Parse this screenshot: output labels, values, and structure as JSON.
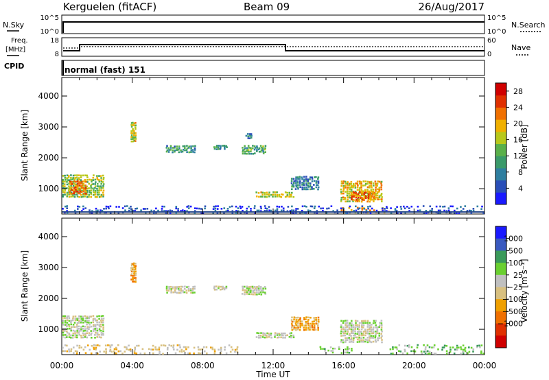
{
  "header": {
    "station": "Kerguelen (fitACF)",
    "beam": "Beam 09",
    "date": "26/Aug/2017"
  },
  "status_panels": {
    "sky_label": "N.Sky",
    "search_label": "N.Search",
    "sky_ticks": [
      "10^5",
      "10^0"
    ],
    "search_ticks": [
      "10^5",
      "10^0"
    ],
    "freq_label_1": "Freq.",
    "freq_label_2": "[MHz]",
    "freq_ticks": [
      "18",
      "8"
    ],
    "nave_label": "Nave",
    "nave_ticks": [
      "60",
      "0"
    ],
    "cpid_label": "CPID",
    "cpid_value": "normal (fast) 151"
  },
  "chart_data": [
    {
      "type": "heatmap",
      "title": "",
      "xlabel": "Time UT",
      "ylabel": "Slant Range [km]",
      "x_ticks": [
        "00:00",
        "04:00",
        "08:00",
        "12:00",
        "16:00",
        "20:00",
        "00:00"
      ],
      "y_ticks": [
        "1000",
        "2000",
        "3000",
        "4000"
      ],
      "xlim_hours": [
        0,
        24
      ],
      "ylim_km": [
        180,
        4600
      ],
      "colorbar_label": "Power [dB]",
      "colorbar_ticks": [
        "4",
        "8",
        "12",
        "16",
        "20",
        "24",
        "28"
      ],
      "colorbar_range": [
        0,
        30
      ],
      "colorbar_colors": [
        "#1a1aff",
        "#2a4fb8",
        "#2f7fa0",
        "#3a9a6a",
        "#5ab04a",
        "#b8c81a",
        "#f0b000",
        "#f07000",
        "#e03000",
        "#d00000"
      ],
      "echo_regions": [
        {
          "t0": 0.0,
          "t1": 2.4,
          "r0": 700,
          "r1": 1450,
          "level": 20
        },
        {
          "t0": 0.4,
          "t1": 1.4,
          "r0": 800,
          "r1": 1250,
          "level": 28
        },
        {
          "t0": 3.9,
          "t1": 4.2,
          "r0": 2500,
          "r1": 3150,
          "level": 22
        },
        {
          "t0": 5.9,
          "t1": 7.6,
          "r0": 2150,
          "r1": 2400,
          "level": 14
        },
        {
          "t0": 8.6,
          "t1": 9.4,
          "r0": 2250,
          "r1": 2400,
          "level": 14
        },
        {
          "t0": 10.2,
          "t1": 11.6,
          "r0": 2100,
          "r1": 2400,
          "level": 16
        },
        {
          "t0": 10.4,
          "t1": 10.8,
          "r0": 2600,
          "r1": 2800,
          "level": 12
        },
        {
          "t0": 11.0,
          "t1": 13.2,
          "r0": 700,
          "r1": 900,
          "level": 22
        },
        {
          "t0": 13.0,
          "t1": 14.6,
          "r0": 950,
          "r1": 1400,
          "level": 12
        },
        {
          "t0": 15.8,
          "t1": 18.2,
          "r0": 550,
          "r1": 1250,
          "level": 24
        },
        {
          "t0": 16.4,
          "t1": 17.8,
          "r0": 600,
          "r1": 900,
          "level": 28
        },
        {
          "t0": 15.8,
          "t1": 18.6,
          "r0": 200,
          "r1": 400,
          "level": 26
        },
        {
          "t0": 0.0,
          "t1": 24.0,
          "r0": 180,
          "r1": 450,
          "level": 8
        }
      ]
    },
    {
      "type": "heatmap",
      "title": "",
      "xlabel": "Time UT",
      "ylabel": "Slant Range [km]",
      "x_ticks": [
        "00:00",
        "04:00",
        "08:00",
        "12:00",
        "16:00",
        "20:00",
        "00:00"
      ],
      "y_ticks": [
        "1000",
        "2000",
        "3000",
        "4000"
      ],
      "xlim_hours": [
        0,
        24
      ],
      "ylim_km": [
        180,
        4600
      ],
      "colorbar_label": "Velocity [m s⁻¹]",
      "colorbar_ticks": [
        "1000",
        "500",
        "100",
        "25",
        "−25",
        "−100",
        "−500",
        "−1000"
      ],
      "colorbar_colors": [
        "#1a1aff",
        "#3a5ac0",
        "#3a9a5a",
        "#6ad030",
        "#c0c0c0",
        "#d8c080",
        "#f0a000",
        "#f07000",
        "#e03000",
        "#d00000"
      ],
      "echo_regions": [
        {
          "t0": 0.0,
          "t1": 2.4,
          "r0": 700,
          "r1": 1450,
          "level": 4
        },
        {
          "t0": 3.9,
          "t1": 4.2,
          "r0": 2500,
          "r1": 3150,
          "level": 6
        },
        {
          "t0": 5.9,
          "t1": 7.6,
          "r0": 2150,
          "r1": 2400,
          "level": 4
        },
        {
          "t0": 8.6,
          "t1": 9.4,
          "r0": 2250,
          "r1": 2400,
          "level": 4
        },
        {
          "t0": 10.2,
          "t1": 11.6,
          "r0": 2100,
          "r1": 2400,
          "level": 4
        },
        {
          "t0": 11.0,
          "t1": 13.2,
          "r0": 700,
          "r1": 900,
          "level": 4
        },
        {
          "t0": 13.0,
          "t1": 14.6,
          "r0": 950,
          "r1": 1400,
          "level": 6
        },
        {
          "t0": 15.8,
          "t1": 18.2,
          "r0": 550,
          "r1": 1300,
          "level": 4
        },
        {
          "t0": 14.5,
          "t1": 16.5,
          "r0": 200,
          "r1": 450,
          "level": 3
        },
        {
          "t0": 18.6,
          "t1": 24.0,
          "r0": 180,
          "r1": 500,
          "level": 3
        },
        {
          "t0": 0.0,
          "t1": 10.0,
          "r0": 180,
          "r1": 500,
          "level": 5
        }
      ]
    }
  ]
}
